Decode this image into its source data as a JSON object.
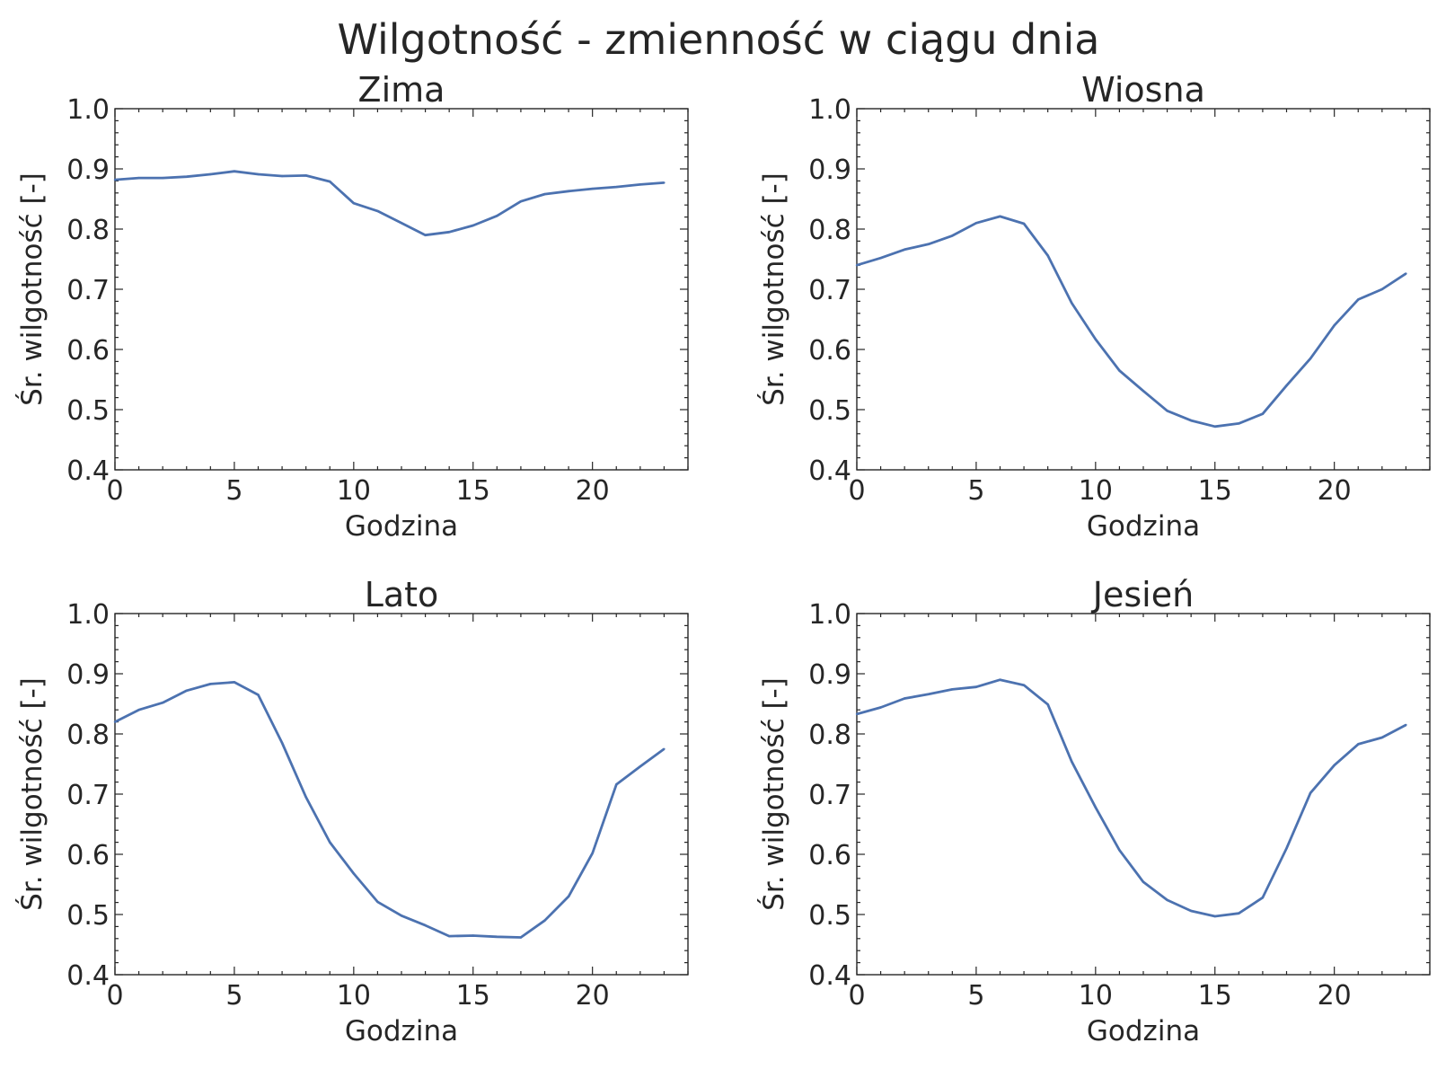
{
  "figure": {
    "title": "Wilgotność - zmienność w ciągu dnia"
  },
  "chart_data": [
    {
      "type": "line",
      "title": "Zima",
      "xlabel": "Godzina",
      "ylabel": "Śr. wilgotność [-]",
      "xlim": [
        0,
        24
      ],
      "ylim": [
        0.4,
        1.0
      ],
      "xticks": [
        "0",
        "5",
        "10",
        "15",
        "20"
      ],
      "yticks": [
        "0.4",
        "0.5",
        "0.6",
        "0.7",
        "0.8",
        "0.9",
        "1.0"
      ],
      "grid": false,
      "series": [
        {
          "color": "#4c72b0",
          "x": [
            0,
            1,
            2,
            3,
            4,
            5,
            6,
            7,
            8,
            9,
            10,
            11,
            12,
            13,
            14,
            15,
            16,
            17,
            18,
            19,
            20,
            21,
            22,
            23
          ],
          "y": [
            0.882,
            0.885,
            0.885,
            0.887,
            0.891,
            0.896,
            0.891,
            0.888,
            0.889,
            0.879,
            0.843,
            0.83,
            0.81,
            0.79,
            0.795,
            0.806,
            0.822,
            0.846,
            0.858,
            0.863,
            0.867,
            0.87,
            0.874,
            0.877
          ]
        }
      ]
    },
    {
      "type": "line",
      "title": "Wiosna",
      "xlabel": "Godzina",
      "ylabel": "Śr. wilgotność [-]",
      "xlim": [
        0,
        24
      ],
      "ylim": [
        0.4,
        1.0
      ],
      "xticks": [
        "0",
        "5",
        "10",
        "15",
        "20"
      ],
      "yticks": [
        "0.4",
        "0.5",
        "0.6",
        "0.7",
        "0.8",
        "0.9",
        "1.0"
      ],
      "grid": false,
      "series": [
        {
          "color": "#4c72b0",
          "x": [
            0,
            1,
            2,
            3,
            4,
            5,
            6,
            7,
            8,
            9,
            10,
            11,
            12,
            13,
            14,
            15,
            16,
            17,
            18,
            19,
            20,
            21,
            22,
            23
          ],
          "y": [
            0.74,
            0.752,
            0.766,
            0.775,
            0.789,
            0.81,
            0.821,
            0.809,
            0.756,
            0.677,
            0.617,
            0.565,
            0.531,
            0.498,
            0.482,
            0.472,
            0.477,
            0.493,
            0.54,
            0.585,
            0.64,
            0.683,
            0.7,
            0.726
          ]
        }
      ]
    },
    {
      "type": "line",
      "title": "Lato",
      "xlabel": "Godzina",
      "ylabel": "Śr. wilgotność [-]",
      "xlim": [
        0,
        24
      ],
      "ylim": [
        0.4,
        1.0
      ],
      "xticks": [
        "0",
        "5",
        "10",
        "15",
        "20"
      ],
      "yticks": [
        "0.4",
        "0.5",
        "0.6",
        "0.7",
        "0.8",
        "0.9",
        "1.0"
      ],
      "grid": false,
      "series": [
        {
          "color": "#4c72b0",
          "x": [
            0,
            1,
            2,
            3,
            4,
            5,
            6,
            7,
            8,
            9,
            10,
            11,
            12,
            13,
            14,
            15,
            16,
            17,
            18,
            19,
            20,
            21,
            22,
            23
          ],
          "y": [
            0.82,
            0.84,
            0.852,
            0.872,
            0.883,
            0.886,
            0.865,
            0.785,
            0.695,
            0.62,
            0.568,
            0.521,
            0.498,
            0.482,
            0.464,
            0.465,
            0.463,
            0.462,
            0.49,
            0.53,
            0.602,
            0.716,
            0.746,
            0.775
          ]
        }
      ]
    },
    {
      "type": "line",
      "title": "Jesień",
      "xlabel": "Godzina",
      "ylabel": "Śr. wilgotność [-]",
      "xlim": [
        0,
        24
      ],
      "ylim": [
        0.4,
        1.0
      ],
      "xticks": [
        "0",
        "5",
        "10",
        "15",
        "20"
      ],
      "yticks": [
        "0.4",
        "0.5",
        "0.6",
        "0.7",
        "0.8",
        "0.9",
        "1.0"
      ],
      "grid": false,
      "series": [
        {
          "color": "#4c72b0",
          "x": [
            0,
            1,
            2,
            3,
            4,
            5,
            6,
            7,
            8,
            9,
            10,
            11,
            12,
            13,
            14,
            15,
            16,
            17,
            18,
            19,
            20,
            21,
            22,
            23
          ],
          "y": [
            0.833,
            0.844,
            0.859,
            0.866,
            0.874,
            0.878,
            0.89,
            0.881,
            0.849,
            0.754,
            0.678,
            0.607,
            0.554,
            0.524,
            0.506,
            0.497,
            0.502,
            0.528,
            0.61,
            0.702,
            0.748,
            0.783,
            0.794,
            0.815
          ]
        }
      ]
    }
  ]
}
